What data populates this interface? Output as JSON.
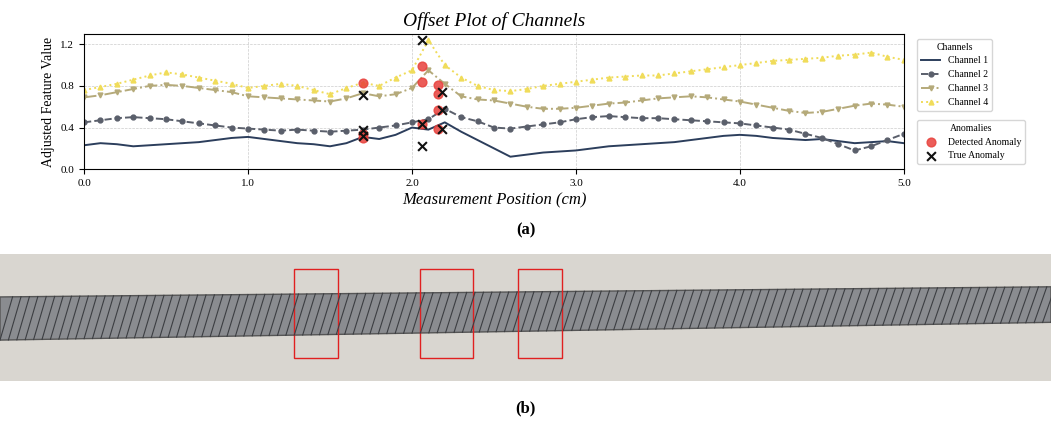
{
  "chart_data": {
    "type": "line",
    "title": "Offset Plot of Channels",
    "x_label": "Measurement Position (cm)",
    "y_label": "Adjusted Feature Value",
    "panel_label": "(a)",
    "x": [
      0.0,
      0.1,
      0.2,
      0.3,
      0.4,
      0.5,
      0.6,
      0.7,
      0.8,
      0.9,
      1.0,
      1.1,
      1.2,
      1.3,
      1.4,
      1.5,
      1.6,
      1.7,
      1.8,
      1.9,
      2.0,
      2.1,
      2.2,
      2.3,
      2.4,
      2.5,
      2.6,
      2.7,
      2.8,
      2.9,
      3.0,
      3.1,
      3.2,
      3.3,
      3.4,
      3.5,
      3.6,
      3.7,
      3.8,
      3.9,
      4.0,
      4.1,
      4.2,
      4.3,
      4.4,
      4.5,
      4.6,
      4.7,
      4.8,
      4.9,
      5.0
    ],
    "series_title": "Channels",
    "series": [
      {
        "name": "Channel 1",
        "color": "#2c3e5c",
        "marker": "none",
        "line_style": "solid",
        "values": [
          0.23,
          0.25,
          0.24,
          0.22,
          0.23,
          0.24,
          0.25,
          0.26,
          0.28,
          0.3,
          0.31,
          0.29,
          0.27,
          0.25,
          0.24,
          0.22,
          0.25,
          0.31,
          0.29,
          0.33,
          0.4,
          0.38,
          0.45,
          0.36,
          0.28,
          0.2,
          0.12,
          0.14,
          0.16,
          0.17,
          0.18,
          0.2,
          0.22,
          0.23,
          0.24,
          0.25,
          0.26,
          0.28,
          0.3,
          0.32,
          0.33,
          0.32,
          0.3,
          0.29,
          0.28,
          0.29,
          0.27,
          0.25,
          0.26,
          0.27,
          0.25
        ]
      },
      {
        "name": "Channel 2",
        "color": "#5a5f6b",
        "marker": "o",
        "line_style": "dashed",
        "values": [
          0.45,
          0.47,
          0.49,
          0.5,
          0.49,
          0.48,
          0.46,
          0.44,
          0.42,
          0.4,
          0.39,
          0.38,
          0.37,
          0.38,
          0.37,
          0.36,
          0.37,
          0.38,
          0.4,
          0.42,
          0.45,
          0.48,
          0.58,
          0.5,
          0.46,
          0.4,
          0.39,
          0.41,
          0.43,
          0.45,
          0.48,
          0.5,
          0.51,
          0.5,
          0.49,
          0.49,
          0.48,
          0.47,
          0.46,
          0.45,
          0.44,
          0.42,
          0.4,
          0.38,
          0.34,
          0.3,
          0.24,
          0.18,
          0.22,
          0.28,
          0.34
        ]
      },
      {
        "name": "Channel 3",
        "color": "#b5aa7a",
        "marker": "v",
        "line_style": "dashdot",
        "values": [
          0.69,
          0.71,
          0.74,
          0.77,
          0.8,
          0.81,
          0.8,
          0.78,
          0.76,
          0.74,
          0.7,
          0.69,
          0.68,
          0.67,
          0.66,
          0.65,
          0.68,
          0.73,
          0.7,
          0.72,
          0.78,
          0.95,
          0.82,
          0.7,
          0.67,
          0.66,
          0.63,
          0.6,
          0.58,
          0.58,
          0.59,
          0.61,
          0.63,
          0.64,
          0.66,
          0.68,
          0.69,
          0.7,
          0.69,
          0.67,
          0.65,
          0.62,
          0.59,
          0.56,
          0.54,
          0.55,
          0.58,
          0.61,
          0.63,
          0.62,
          0.6
        ]
      },
      {
        "name": "Channel 4",
        "color": "#f0dc5a",
        "marker": "^",
        "line_style": "dotted",
        "values": [
          0.76,
          0.79,
          0.82,
          0.86,
          0.9,
          0.93,
          0.91,
          0.88,
          0.85,
          0.82,
          0.78,
          0.8,
          0.82,
          0.8,
          0.76,
          0.72,
          0.78,
          0.83,
          0.8,
          0.88,
          0.95,
          1.24,
          1.0,
          0.88,
          0.8,
          0.76,
          0.75,
          0.77,
          0.8,
          0.82,
          0.84,
          0.86,
          0.88,
          0.89,
          0.9,
          0.9,
          0.92,
          0.94,
          0.96,
          0.98,
          1.0,
          1.02,
          1.04,
          1.05,
          1.06,
          1.07,
          1.09,
          1.1,
          1.12,
          1.08,
          1.05
        ]
      }
    ],
    "anomalies_title": "Anomalies",
    "anomalies": [
      {
        "name": "Detected Anomaly",
        "type": "scatter",
        "color": "#e8413c",
        "marker": "o",
        "x": [
          1.7,
          1.7,
          1.7,
          2.06,
          2.06,
          2.06,
          2.16,
          2.16,
          2.16,
          2.16
        ],
        "values": [
          0.83,
          0.34,
          0.3,
          0.99,
          0.84,
          0.43,
          0.81,
          0.72,
          0.57,
          0.39
        ]
      },
      {
        "name": "True Anomaly",
        "type": "scatter",
        "color": "#111111",
        "marker": "x",
        "x": [
          1.7,
          1.7,
          1.7,
          2.06,
          2.06,
          2.06,
          2.18,
          2.18,
          2.18
        ],
        "values": [
          0.71,
          0.38,
          0.32,
          1.24,
          0.43,
          0.22,
          0.74,
          0.57,
          0.39
        ]
      }
    ],
    "xlim": [
      0.0,
      5.0
    ],
    "xticks": [
      0.0,
      1.0,
      2.0,
      3.0,
      4.0,
      5.0
    ],
    "ylim": [
      0.0,
      1.3
    ],
    "yticks": [
      0.0,
      0.4,
      0.8,
      1.2
    ],
    "grid": true,
    "legend": "right"
  },
  "photo": {
    "panel_label": "(b)"
  }
}
